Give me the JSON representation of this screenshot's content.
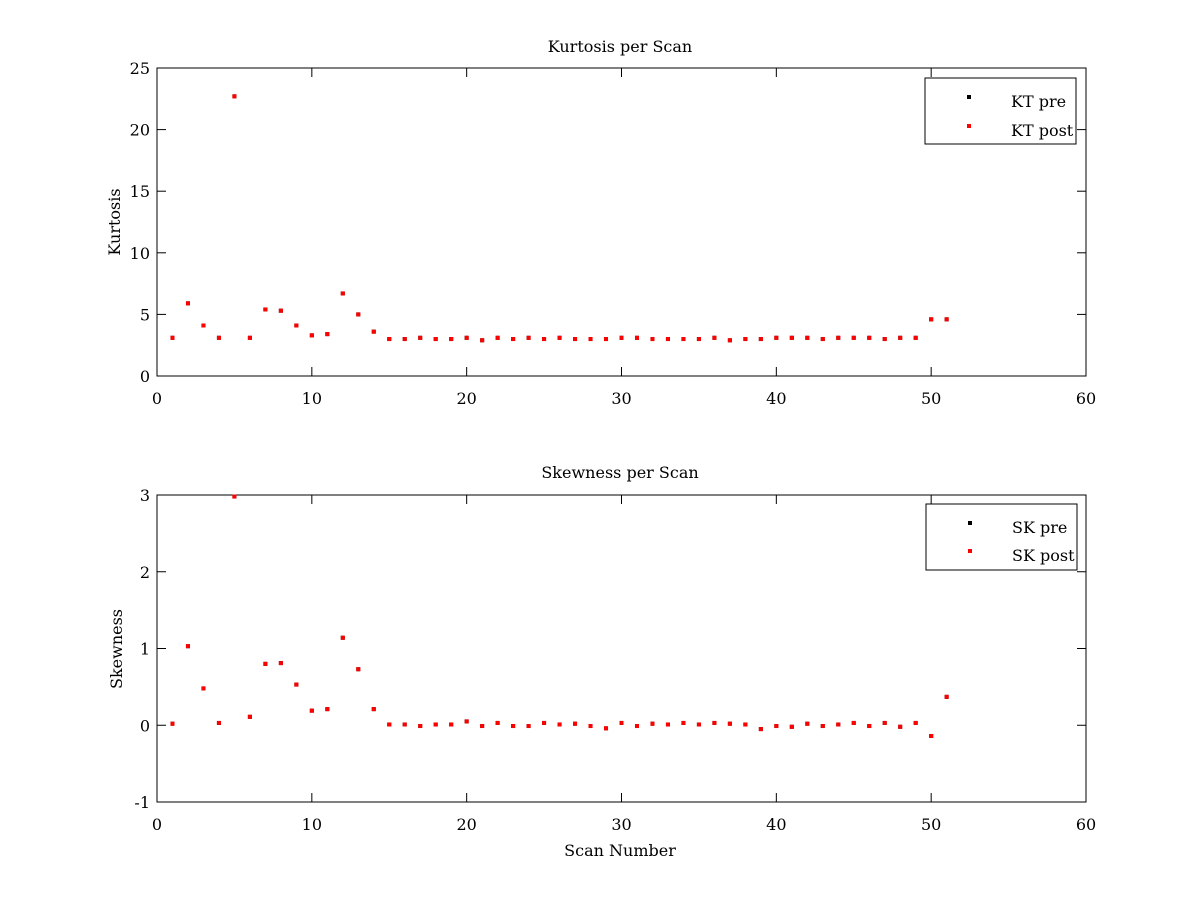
{
  "chart_data": [
    {
      "type": "scatter",
      "title": "Kurtosis per Scan",
      "xlabel": "",
      "ylabel": "Kurtosis",
      "xlim": [
        0,
        60
      ],
      "ylim": [
        0,
        25
      ],
      "xticks": [
        0,
        10,
        20,
        30,
        40,
        50,
        60
      ],
      "yticks": [
        0,
        5,
        10,
        15,
        20,
        25
      ],
      "grid": false,
      "legend": "top-right",
      "series": [
        {
          "name": "KT pre",
          "color": "#000000",
          "x": [
            1,
            2,
            3,
            4,
            5,
            6,
            7,
            8,
            9,
            10,
            11,
            12,
            13,
            14,
            15,
            16,
            17,
            18,
            19,
            20,
            21,
            22,
            23,
            24,
            25,
            26,
            27,
            28,
            29,
            30,
            31,
            32,
            33,
            34,
            35,
            36,
            37,
            38,
            39,
            40,
            41,
            42,
            43,
            44,
            45,
            46,
            47,
            48,
            49,
            50,
            51
          ],
          "y": [
            3.1,
            5.9,
            4.1,
            3.1,
            22.7,
            3.1,
            5.4,
            5.3,
            4.1,
            3.3,
            3.4,
            6.7,
            5.0,
            3.6,
            3.0,
            3.0,
            3.1,
            3.0,
            3.0,
            3.1,
            2.9,
            3.1,
            3.0,
            3.1,
            3.0,
            3.1,
            3.0,
            3.0,
            3.0,
            3.1,
            3.1,
            3.0,
            3.0,
            3.0,
            3.0,
            3.1,
            2.9,
            3.0,
            3.0,
            3.1,
            3.1,
            3.1,
            3.0,
            3.1,
            3.1,
            3.1,
            3.0,
            3.1,
            3.1,
            4.6,
            4.6
          ]
        },
        {
          "name": "KT post",
          "color": "#ff0000",
          "x": [
            1,
            2,
            3,
            4,
            5,
            6,
            7,
            8,
            9,
            10,
            11,
            12,
            13,
            14,
            15,
            16,
            17,
            18,
            19,
            20,
            21,
            22,
            23,
            24,
            25,
            26,
            27,
            28,
            29,
            30,
            31,
            32,
            33,
            34,
            35,
            36,
            37,
            38,
            39,
            40,
            41,
            42,
            43,
            44,
            45,
            46,
            47,
            48,
            49,
            50,
            51
          ],
          "y": [
            3.1,
            5.9,
            4.1,
            3.1,
            22.7,
            3.1,
            5.4,
            5.3,
            4.1,
            3.3,
            3.4,
            6.7,
            5.0,
            3.6,
            3.0,
            3.0,
            3.1,
            3.0,
            3.0,
            3.1,
            2.9,
            3.1,
            3.0,
            3.1,
            3.0,
            3.1,
            3.0,
            3.0,
            3.0,
            3.1,
            3.1,
            3.0,
            3.0,
            3.0,
            3.0,
            3.1,
            2.9,
            3.0,
            3.0,
            3.1,
            3.1,
            3.1,
            3.0,
            3.1,
            3.1,
            3.1,
            3.0,
            3.1,
            3.1,
            4.6,
            4.6
          ]
        }
      ]
    },
    {
      "type": "scatter",
      "title": "Skewness per Scan",
      "xlabel": "Scan Number",
      "ylabel": "Skewness",
      "xlim": [
        0,
        60
      ],
      "ylim": [
        -1,
        3
      ],
      "xticks": [
        0,
        10,
        20,
        30,
        40,
        50,
        60
      ],
      "yticks": [
        -1,
        0,
        1,
        2,
        3
      ],
      "grid": false,
      "legend": "top-right",
      "series": [
        {
          "name": "SK pre",
          "color": "#000000",
          "x": [
            1,
            2,
            3,
            4,
            5,
            6,
            7,
            8,
            9,
            10,
            11,
            12,
            13,
            14,
            15,
            16,
            17,
            18,
            19,
            20,
            21,
            22,
            23,
            24,
            25,
            26,
            27,
            28,
            29,
            30,
            31,
            32,
            33,
            34,
            35,
            36,
            37,
            38,
            39,
            40,
            41,
            42,
            43,
            44,
            45,
            46,
            47,
            48,
            49,
            50,
            51
          ],
          "y": [
            0.02,
            1.03,
            0.48,
            0.03,
            2.98,
            0.11,
            0.8,
            0.81,
            0.53,
            0.19,
            0.21,
            1.14,
            0.73,
            0.21,
            0.01,
            0.01,
            -0.01,
            0.01,
            0.01,
            0.05,
            -0.01,
            0.03,
            -0.01,
            -0.01,
            0.03,
            0.01,
            0.02,
            -0.01,
            -0.04,
            0.03,
            -0.01,
            0.02,
            0.01,
            0.03,
            0.01,
            0.03,
            0.02,
            0.01,
            -0.05,
            -0.01,
            -0.02,
            0.02,
            -0.01,
            0.01,
            0.03,
            -0.01,
            0.03,
            -0.02,
            0.03,
            -0.14,
            0.37
          ]
        },
        {
          "name": "SK post",
          "color": "#ff0000",
          "x": [
            1,
            2,
            3,
            4,
            5,
            6,
            7,
            8,
            9,
            10,
            11,
            12,
            13,
            14,
            15,
            16,
            17,
            18,
            19,
            20,
            21,
            22,
            23,
            24,
            25,
            26,
            27,
            28,
            29,
            30,
            31,
            32,
            33,
            34,
            35,
            36,
            37,
            38,
            39,
            40,
            41,
            42,
            43,
            44,
            45,
            46,
            47,
            48,
            49,
            50,
            51
          ],
          "y": [
            0.02,
            1.03,
            0.48,
            0.03,
            2.98,
            0.11,
            0.8,
            0.81,
            0.53,
            0.19,
            0.21,
            1.14,
            0.73,
            0.21,
            0.01,
            0.01,
            -0.01,
            0.01,
            0.01,
            0.05,
            -0.01,
            0.03,
            -0.01,
            -0.01,
            0.03,
            0.01,
            0.02,
            -0.01,
            -0.04,
            0.03,
            -0.01,
            0.02,
            0.01,
            0.03,
            0.01,
            0.03,
            0.02,
            0.01,
            -0.05,
            -0.01,
            -0.02,
            0.02,
            -0.01,
            0.01,
            0.03,
            -0.01,
            0.03,
            -0.02,
            0.03,
            -0.14,
            0.37
          ]
        }
      ]
    }
  ]
}
